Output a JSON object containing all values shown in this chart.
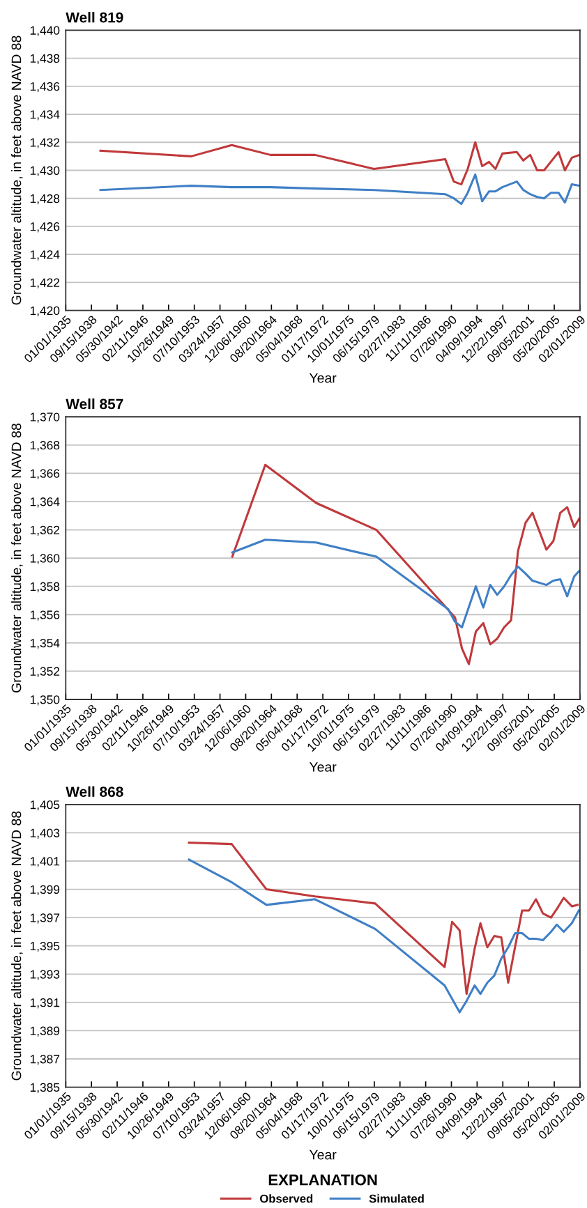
{
  "chart_data": [
    {
      "type": "line",
      "title": "Well 819",
      "xlabel": "Year",
      "ylabel": "Groundwater altitude, in feet above NAVD 88",
      "grid": "y",
      "legend": false,
      "xlim": [
        "1935-01-01",
        "2009-02-01"
      ],
      "xticks": [
        {
          "value": "1935-01-01",
          "label": "01/01/1935"
        },
        {
          "value": "1938-09-15",
          "label": "09/15/1938"
        },
        {
          "value": "1942-05-30",
          "label": "05/30/1942"
        },
        {
          "value": "1946-02-11",
          "label": "02/11/1946"
        },
        {
          "value": "1949-10-26",
          "label": "10/26/1949"
        },
        {
          "value": "1953-07-10",
          "label": "07/10/1953"
        },
        {
          "value": "1957-03-24",
          "label": "03/24/1957"
        },
        {
          "value": "1960-12-06",
          "label": "12/06/1960"
        },
        {
          "value": "1964-08-20",
          "label": "08/20/1964"
        },
        {
          "value": "1968-05-04",
          "label": "05/04/1968"
        },
        {
          "value": "1972-01-17",
          "label": "01/17/1972"
        },
        {
          "value": "1975-10-01",
          "label": "10/01/1975"
        },
        {
          "value": "1979-06-15",
          "label": "06/15/1979"
        },
        {
          "value": "1983-02-27",
          "label": "02/27/1983"
        },
        {
          "value": "1986-11-11",
          "label": "11/11/1986"
        },
        {
          "value": "1990-07-26",
          "label": "07/26/1990"
        },
        {
          "value": "1994-04-09",
          "label": "04/09/1994"
        },
        {
          "value": "1997-12-22",
          "label": "12/22/1997"
        },
        {
          "value": "2001-09-05",
          "label": "09/05/2001"
        },
        {
          "value": "2005-05-20",
          "label": "05/20/2005"
        },
        {
          "value": "2009-02-01",
          "label": "02/01/2009"
        }
      ],
      "ylim": [
        1420,
        1440
      ],
      "yticks": [
        {
          "value": 1420,
          "label": "1,420"
        },
        {
          "value": 1422,
          "label": "1,422"
        },
        {
          "value": 1424,
          "label": "1,424"
        },
        {
          "value": 1426,
          "label": "1,426"
        },
        {
          "value": 1428,
          "label": "1,428"
        },
        {
          "value": 1430,
          "label": "1,430"
        },
        {
          "value": 1432,
          "label": "1,432"
        },
        {
          "value": 1434,
          "label": "1,434"
        },
        {
          "value": 1436,
          "label": "1,436"
        },
        {
          "value": 1438,
          "label": "1,438"
        },
        {
          "value": 1440,
          "label": "1,440"
        }
      ],
      "series": [
        {
          "color": "#c0393b",
          "x": [
            "1940-01",
            "1953-02",
            "1958-12",
            "1964-07",
            "1970-12",
            "1979-06",
            "1989-09",
            "1990-12",
            "1992-01",
            "1992-12",
            "1994-01",
            "1995-01",
            "1996-01",
            "1996-12",
            "1997-12",
            "2000-01",
            "2000-12",
            "2001-12",
            "2002-12",
            "2003-12",
            "2006-01",
            "2006-12",
            "2007-12",
            "2009-01"
          ],
          "values": [
            1431.4,
            1431.0,
            1431.8,
            1431.1,
            1431.1,
            1430.1,
            1430.8,
            1429.2,
            1429.0,
            1430.1,
            1432.0,
            1430.3,
            1430.6,
            1430.1,
            1431.2,
            1431.3,
            1430.7,
            1431.1,
            1430.0,
            1430.0,
            1431.3,
            1430.0,
            1430.9,
            1431.1
          ]
        },
        {
          "color": "#3f7fc6",
          "x": [
            "1940-01",
            "1953-02",
            "1958-12",
            "1964-07",
            "1970-12",
            "1979-06",
            "1989-09",
            "1990-12",
            "1992-01",
            "1992-12",
            "1994-01",
            "1995-01",
            "1996-01",
            "1996-12",
            "1997-12",
            "2000-01",
            "2000-12",
            "2001-12",
            "2002-12",
            "2003-12",
            "2004-12",
            "2006-01",
            "2006-12",
            "2007-12",
            "2009-01"
          ],
          "values": [
            1428.6,
            1428.9,
            1428.8,
            1428.8,
            1428.7,
            1428.6,
            1428.3,
            1428.0,
            1427.6,
            1428.4,
            1429.7,
            1427.8,
            1428.5,
            1428.5,
            1428.8,
            1429.2,
            1428.6,
            1428.3,
            1428.1,
            1428.0,
            1428.4,
            1428.4,
            1427.7,
            1429.0,
            1428.9
          ]
        }
      ]
    },
    {
      "type": "line",
      "title": "Well 857",
      "xlabel": "Year",
      "ylabel": "Groundwater altitude, in feet above NAVD 88",
      "grid": "y",
      "legend": false,
      "xlim": [
        "1935-01-01",
        "2009-02-01"
      ],
      "xticks": [
        {
          "value": "1935-01-01",
          "label": "01/01/1935"
        },
        {
          "value": "1938-09-15",
          "label": "09/15/1938"
        },
        {
          "value": "1942-05-30",
          "label": "05/30/1942"
        },
        {
          "value": "1946-02-11",
          "label": "02/11/1946"
        },
        {
          "value": "1949-10-26",
          "label": "10/26/1949"
        },
        {
          "value": "1953-07-10",
          "label": "07/10/1953"
        },
        {
          "value": "1957-03-24",
          "label": "03/24/1957"
        },
        {
          "value": "1960-12-06",
          "label": "12/06/1960"
        },
        {
          "value": "1964-08-20",
          "label": "08/20/1964"
        },
        {
          "value": "1968-05-04",
          "label": "05/04/1968"
        },
        {
          "value": "1972-01-17",
          "label": "01/17/1972"
        },
        {
          "value": "1975-10-01",
          "label": "10/01/1975"
        },
        {
          "value": "1979-06-15",
          "label": "06/15/1979"
        },
        {
          "value": "1983-02-27",
          "label": "02/27/1983"
        },
        {
          "value": "1986-11-11",
          "label": "11/11/1986"
        },
        {
          "value": "1990-07-26",
          "label": "07/26/1990"
        },
        {
          "value": "1994-04-09",
          "label": "04/09/1994"
        },
        {
          "value": "1997-12-22",
          "label": "12/22/1997"
        },
        {
          "value": "2001-09-05",
          "label": "09/05/2001"
        },
        {
          "value": "2005-05-20",
          "label": "05/20/2005"
        },
        {
          "value": "2009-02-01",
          "label": "02/01/2009"
        }
      ],
      "ylim": [
        1350,
        1370
      ],
      "yticks": [
        {
          "value": 1350,
          "label": "1,350"
        },
        {
          "value": 1352,
          "label": "1,352"
        },
        {
          "value": 1354,
          "label": "1,354"
        },
        {
          "value": 1356,
          "label": "1,356"
        },
        {
          "value": 1358,
          "label": "1,358"
        },
        {
          "value": 1360,
          "label": "1,360"
        },
        {
          "value": 1362,
          "label": "1,362"
        },
        {
          "value": 1364,
          "label": "1,364"
        },
        {
          "value": 1366,
          "label": "1,366"
        },
        {
          "value": 1368,
          "label": "1,368"
        },
        {
          "value": 1370,
          "label": "1,370"
        }
      ],
      "series": [
        {
          "color": "#c0393b",
          "x": [
            "1959-01",
            "1963-10",
            "1971-02",
            "1979-10",
            "1991-02",
            "1992-02",
            "1993-02",
            "1994-02",
            "1995-03",
            "1996-03",
            "1997-03",
            "1998-03",
            "1999-03",
            "2000-03",
            "2001-04",
            "2002-04",
            "2004-04",
            "2005-04",
            "2006-04",
            "2007-04",
            "2008-04",
            "2009-01"
          ],
          "values": [
            1360.1,
            1366.6,
            1363.9,
            1362.0,
            1355.8,
            1353.6,
            1352.5,
            1354.8,
            1355.4,
            1353.9,
            1354.3,
            1355.1,
            1355.6,
            1360.5,
            1362.5,
            1363.2,
            1360.6,
            1361.2,
            1363.2,
            1363.6,
            1362.2,
            1362.8
          ]
        },
        {
          "color": "#3f7fc6",
          "x": [
            "1959-01",
            "1963-10",
            "1971-02",
            "1979-10",
            "1990-02",
            "1991-02",
            "1992-02",
            "1994-02",
            "1995-03",
            "1996-03",
            "1997-03",
            "1998-03",
            "1999-03",
            "2000-03",
            "2001-04",
            "2002-04",
            "2004-04",
            "2005-04",
            "2006-04",
            "2007-04",
            "2008-04",
            "2009-01"
          ],
          "values": [
            1360.4,
            1361.3,
            1361.1,
            1360.1,
            1356.4,
            1355.5,
            1355.1,
            1358.0,
            1356.5,
            1358.1,
            1357.4,
            1358.0,
            1358.8,
            1359.4,
            1358.9,
            1358.4,
            1358.1,
            1358.4,
            1358.5,
            1357.3,
            1358.7,
            1359.1
          ]
        }
      ]
    },
    {
      "type": "line",
      "title": "Well 868",
      "xlabel": "Year",
      "ylabel": "Groundwater altitude, in feet above NAVD 88",
      "grid": "y",
      "legend": "bottom",
      "legend_title": "EXPLANATION",
      "xlim": [
        "1935-01-01",
        "2009-02-01"
      ],
      "xticks": [
        {
          "value": "1935-01-01",
          "label": "01/01/1935"
        },
        {
          "value": "1938-09-15",
          "label": "09/15/1938"
        },
        {
          "value": "1942-05-30",
          "label": "05/30/1942"
        },
        {
          "value": "1946-02-11",
          "label": "02/11/1946"
        },
        {
          "value": "1949-10-26",
          "label": "10/26/1949"
        },
        {
          "value": "1953-07-10",
          "label": "07/10/1953"
        },
        {
          "value": "1957-03-24",
          "label": "03/24/1957"
        },
        {
          "value": "1960-12-06",
          "label": "12/06/1960"
        },
        {
          "value": "1964-08-20",
          "label": "08/20/1964"
        },
        {
          "value": "1968-05-04",
          "label": "05/04/1968"
        },
        {
          "value": "1972-01-17",
          "label": "01/17/1972"
        },
        {
          "value": "1975-10-01",
          "label": "10/01/1975"
        },
        {
          "value": "1979-06-15",
          "label": "06/15/1979"
        },
        {
          "value": "1983-02-27",
          "label": "02/27/1983"
        },
        {
          "value": "1986-11-11",
          "label": "11/11/1986"
        },
        {
          "value": "1990-07-26",
          "label": "07/26/1990"
        },
        {
          "value": "1994-04-09",
          "label": "04/09/1994"
        },
        {
          "value": "1997-12-22",
          "label": "12/22/1997"
        },
        {
          "value": "2001-09-05",
          "label": "09/05/2001"
        },
        {
          "value": "2005-05-20",
          "label": "05/20/2005"
        },
        {
          "value": "2009-02-01",
          "label": "02/01/2009"
        }
      ],
      "ylim": [
        1385,
        1405
      ],
      "yticks": [
        {
          "value": 1385,
          "label": "1,385"
        },
        {
          "value": 1387,
          "label": "1,387"
        },
        {
          "value": 1389,
          "label": "1,389"
        },
        {
          "value": 1391,
          "label": "1,391"
        },
        {
          "value": 1393,
          "label": "1,393"
        },
        {
          "value": 1395,
          "label": "1,395"
        },
        {
          "value": 1397,
          "label": "1,397"
        },
        {
          "value": 1399,
          "label": "1,399"
        },
        {
          "value": 1401,
          "label": "1,401"
        },
        {
          "value": 1403,
          "label": "1,403"
        },
        {
          "value": 1405,
          "label": "1,405"
        }
      ],
      "series": [
        {
          "name": "Observed",
          "color": "#c0393b",
          "x": [
            "1952-10",
            "1958-12",
            "1963-12",
            "1970-12",
            "1979-08",
            "1989-08",
            "1990-09",
            "1991-10",
            "1992-10",
            "1993-12",
            "1994-10",
            "1995-10",
            "1996-10",
            "1997-10",
            "1998-10",
            "2000-10",
            "2001-10",
            "2002-10",
            "2003-10",
            "2004-12",
            "2005-10",
            "2006-10",
            "2007-12",
            "2008-10"
          ],
          "values": [
            1402.3,
            1402.2,
            1399.0,
            1398.5,
            1398.0,
            1393.5,
            1396.7,
            1396.1,
            1391.6,
            1394.8,
            1396.6,
            1394.9,
            1395.7,
            1395.6,
            1392.4,
            1397.5,
            1397.5,
            1398.3,
            1397.3,
            1397.0,
            1397.6,
            1398.4,
            1397.8,
            1397.9
          ]
        },
        {
          "name": "Simulated",
          "color": "#3f7fc6",
          "x": [
            "1952-10",
            "1958-12",
            "1963-12",
            "1970-12",
            "1979-08",
            "1989-08",
            "1991-10",
            "1992-10",
            "1993-12",
            "1994-10",
            "1995-10",
            "1996-10",
            "1997-10",
            "1998-10",
            "1999-10",
            "2000-10",
            "2001-10",
            "2002-10",
            "2003-10",
            "2004-12",
            "2005-10",
            "2006-10",
            "2007-12",
            "2008-12"
          ],
          "values": [
            1401.1,
            1399.5,
            1397.9,
            1398.3,
            1396.2,
            1392.2,
            1390.3,
            1391.1,
            1392.2,
            1391.6,
            1392.4,
            1392.9,
            1394.1,
            1394.9,
            1395.9,
            1395.9,
            1395.5,
            1395.5,
            1395.4,
            1396.0,
            1396.5,
            1396.0,
            1396.6,
            1397.5
          ]
        }
      ]
    }
  ]
}
